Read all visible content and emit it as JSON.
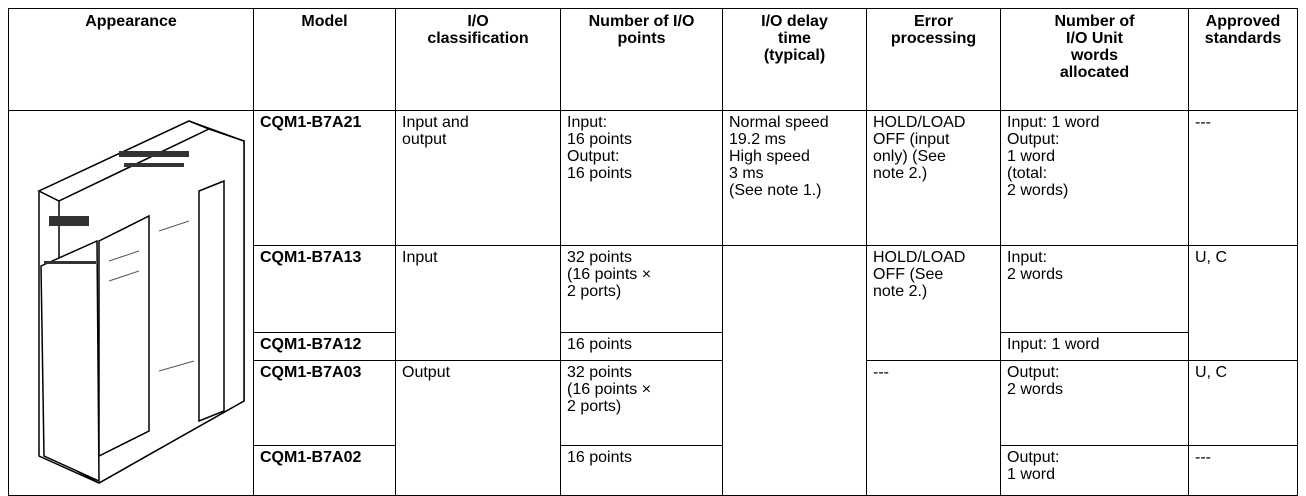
{
  "table": {
    "header": [
      [
        "Appearance"
      ],
      [
        "Model"
      ],
      [
        "I/O",
        "classification"
      ],
      [
        "Number of I/O",
        "points"
      ],
      [
        "I/O delay",
        "time",
        "(typical)"
      ],
      [
        "Error",
        "processing"
      ],
      [
        "Number of",
        "I/O Unit",
        "words",
        "allocated"
      ],
      [
        "Approved",
        "standards"
      ]
    ],
    "rows": [
      [
        [
          "CQM1-B7A21"
        ],
        [
          "Input and",
          "output"
        ],
        [
          "Input:",
          "16 points",
          "Output:",
          "16 points"
        ],
        [
          "Normal speed",
          "19.2 ms",
          "High speed",
          "3 ms",
          "(See note 1.)"
        ],
        [
          "HOLD/LOAD",
          "OFF (input",
          "only) (See",
          "note 2.)"
        ],
        [
          "Input: 1 word",
          "Output:",
          "1 word",
          "(total:",
          "2 words)"
        ],
        [
          "---"
        ]
      ],
      [
        [
          "CQM1-B7A13"
        ],
        [
          "Input"
        ],
        [
          "32 points",
          "(16 points ×",
          "2 ports)"
        ],
        [
          "HOLD/LOAD",
          "OFF (See",
          "note 2.)"
        ],
        [
          "Input:",
          "2 words"
        ],
        [
          "U, C"
        ]
      ],
      [
        [
          "CQM1-B7A12"
        ],
        [
          "16 points"
        ],
        [
          "Input: 1 word"
        ]
      ],
      [
        [
          "CQM1-B7A03"
        ],
        [
          "Output"
        ],
        [
          "32 points",
          "(16 points ×",
          "2 ports)"
        ],
        [
          "---"
        ],
        [
          "Output:",
          "2 words"
        ],
        [
          "U, C"
        ]
      ],
      [
        [
          "CQM1-B7A02"
        ],
        [
          "16 points"
        ],
        [
          "Output:",
          "1 word"
        ],
        [
          "---"
        ]
      ]
    ]
  }
}
